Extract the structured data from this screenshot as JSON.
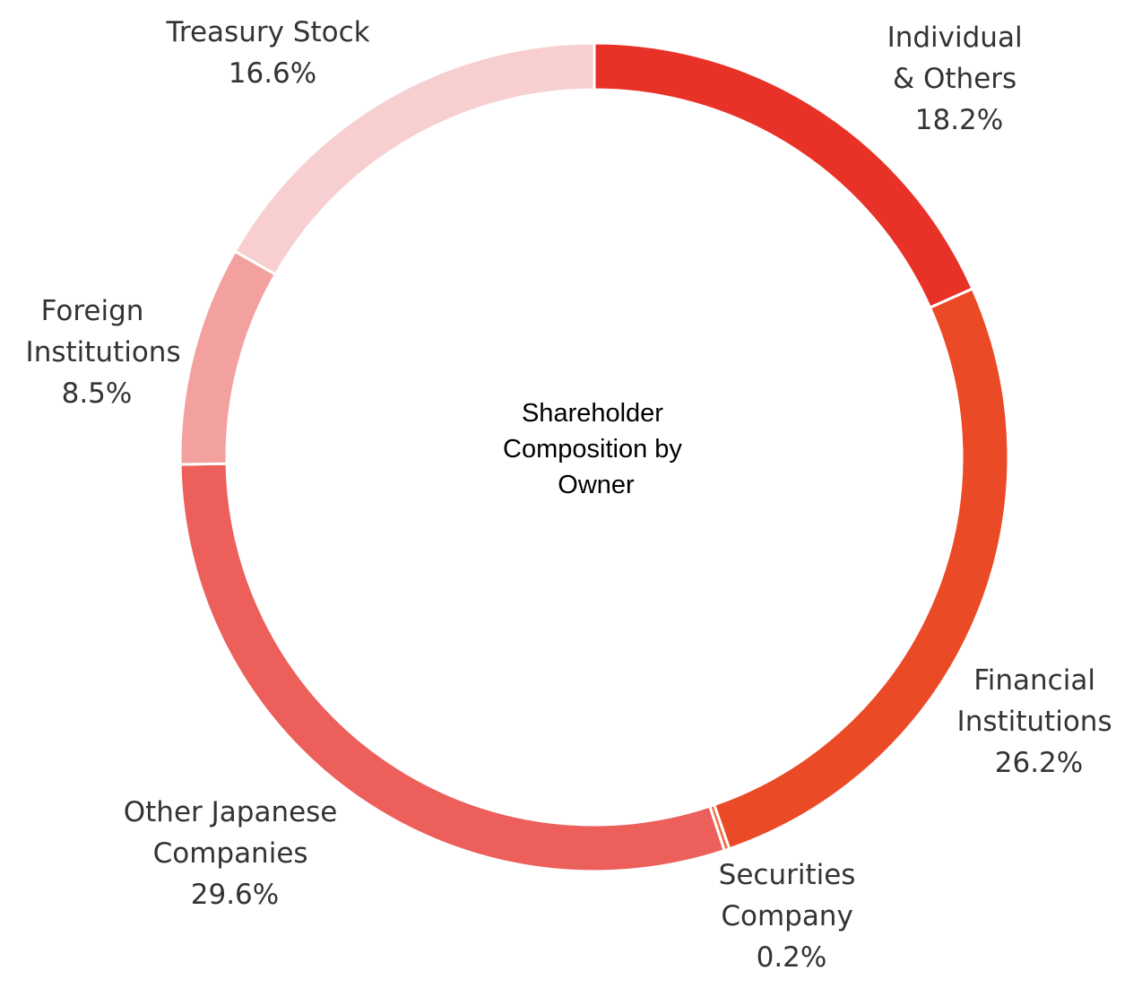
{
  "chart_data": {
    "type": "pie",
    "style": "donut",
    "title_lines": [
      "Shareholder",
      "Composition by",
      "Owner"
    ],
    "unit": "%",
    "slices": [
      {
        "id": "individual",
        "label_lines": [
          "Individual",
          "& Others"
        ],
        "value": 18.2,
        "value_label": "18.2%",
        "color": "#e93227"
      },
      {
        "id": "financial",
        "label_lines": [
          "Financial",
          "Institutions"
        ],
        "value": 26.2,
        "value_label": "26.2%",
        "color": "#eb4a26"
      },
      {
        "id": "securities",
        "label_lines": [
          "Securities",
          "Company"
        ],
        "value": 0.2,
        "value_label": "0.2%",
        "color": "#ef6b3a"
      },
      {
        "id": "other-japanese",
        "label_lines": [
          "Other Japanese",
          "Companies"
        ],
        "value": 29.6,
        "value_label": "29.6%",
        "color": "#ec5f5b"
      },
      {
        "id": "foreign",
        "label_lines": [
          "Foreign",
          "Institutions"
        ],
        "value": 8.5,
        "value_label": "8.5%",
        "color": "#f2a19e"
      },
      {
        "id": "treasury",
        "label_lines": [
          "Treasury Stock"
        ],
        "value": 16.6,
        "value_label": "16.6%",
        "color": "#f7cfd0"
      }
    ]
  }
}
